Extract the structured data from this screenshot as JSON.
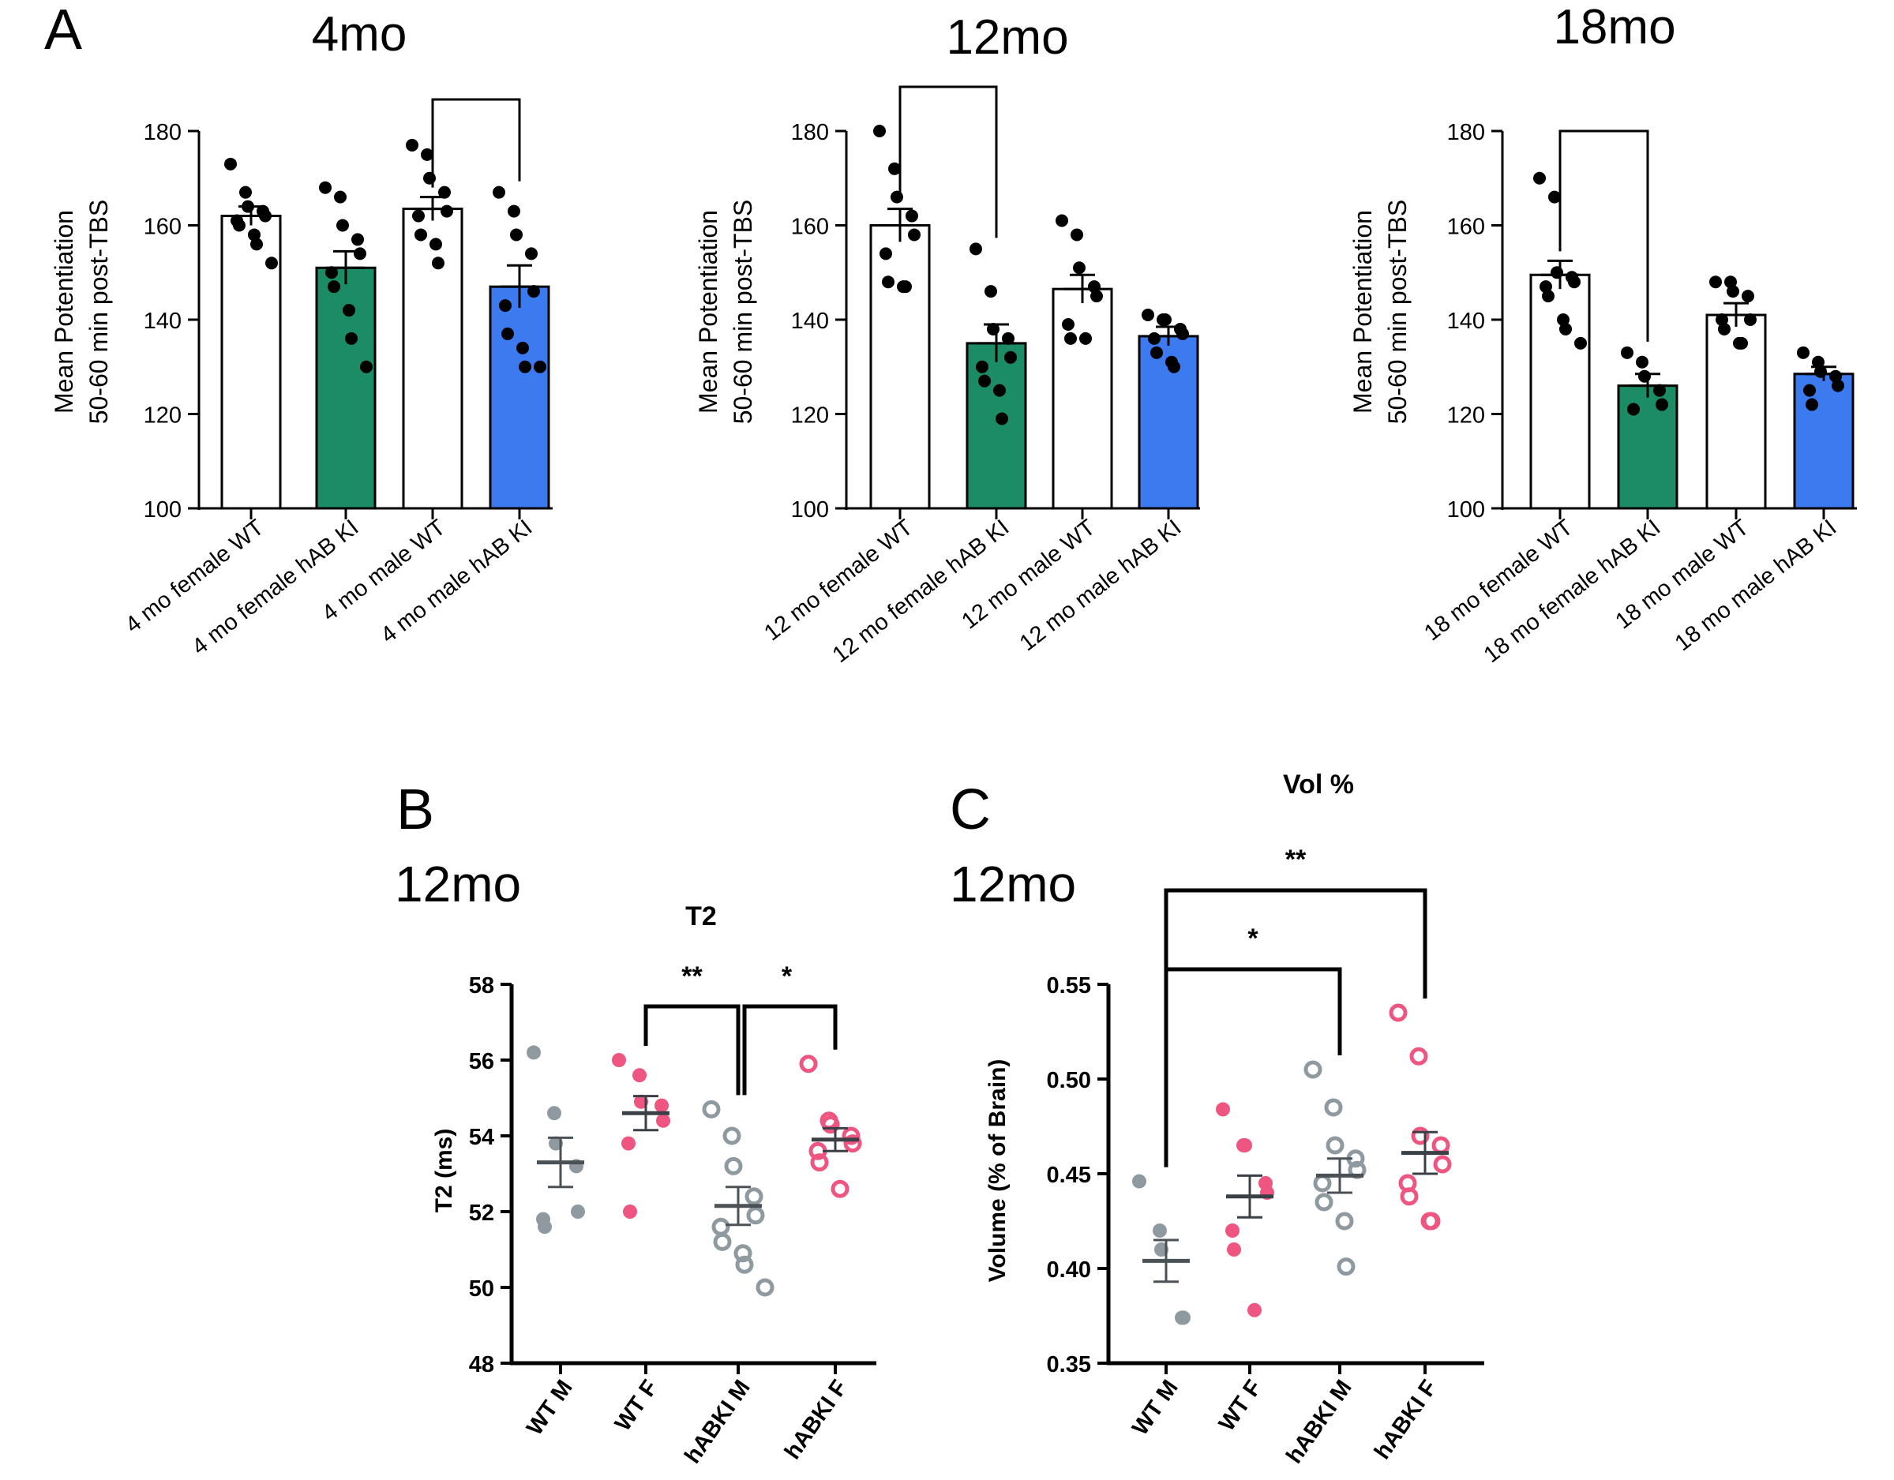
{
  "colors": {
    "axis": "#000000",
    "green": "#1b8c66",
    "blue": "#3b7bef",
    "gray": "#8e9aa0",
    "pink": "#ee5580",
    "bar_white": "#ffffff"
  },
  "panels": {
    "A": {
      "label": "A"
    },
    "B": {
      "label": "B",
      "age": "12mo"
    },
    "C": {
      "label": "C",
      "age": "12mo"
    }
  },
  "chart_data": [
    {
      "id": "A1",
      "type": "bar",
      "title": "4mo",
      "ylabel_line1": "Mean Potentiation",
      "ylabel_line2": "50-60 min post-TBS",
      "ylim": [
        100,
        180
      ],
      "yticks": [
        100,
        120,
        140,
        160,
        180
      ],
      "categories": [
        "4 mo female WT",
        "4 mo female hAB KI",
        "4 mo male WT",
        "4 mo male hAB KI"
      ],
      "bar_colors": [
        "white",
        "green",
        "white",
        "blue"
      ],
      "values": [
        162,
        151,
        163.5,
        147
      ],
      "sem": [
        2,
        3.5,
        2.5,
        4.5
      ],
      "points": [
        [
          173,
          167,
          164,
          163,
          162,
          161,
          160,
          158,
          156,
          152
        ],
        [
          168,
          166,
          160,
          157,
          154,
          150,
          147,
          142,
          136,
          130
        ],
        [
          177,
          175,
          170,
          167,
          163,
          162,
          158,
          156,
          152
        ],
        [
          167,
          163,
          158,
          154,
          146,
          143,
          137,
          134,
          130,
          130
        ]
      ],
      "significance": [
        {
          "from": 2,
          "to": 3,
          "label": ""
        }
      ]
    },
    {
      "id": "A2",
      "type": "bar",
      "title": "12mo",
      "ylabel_line1": "Mean Potentiation",
      "ylabel_line2": "50-60 min post-TBS",
      "ylim": [
        100,
        180
      ],
      "yticks": [
        100,
        120,
        140,
        160,
        180
      ],
      "categories": [
        "12 mo female WT",
        "12 mo female hAB KI",
        "12 mo male WT",
        "12 mo male hAB KI"
      ],
      "bar_colors": [
        "white",
        "green",
        "white",
        "blue"
      ],
      "values": [
        160,
        135,
        146.5,
        136.5
      ],
      "sem": [
        3.5,
        4,
        3,
        2
      ],
      "points": [
        [
          180,
          172,
          166,
          162,
          158,
          154,
          148,
          147,
          147
        ],
        [
          155,
          146,
          138,
          136,
          132,
          130,
          127,
          125,
          119
        ],
        [
          161,
          158,
          151,
          147,
          145,
          139,
          136,
          136
        ],
        [
          141,
          140,
          140,
          138,
          137,
          136,
          133,
          131,
          130
        ]
      ],
      "significance": [
        {
          "from": 0,
          "to": 1,
          "label": ""
        }
      ]
    },
    {
      "id": "A3",
      "type": "bar",
      "title": "18mo",
      "ylabel_line1": "Mean Potentiation",
      "ylabel_line2": "50-60 min post-TBS",
      "ylim": [
        100,
        180
      ],
      "yticks": [
        100,
        120,
        140,
        160,
        180
      ],
      "categories": [
        "18 mo female WT",
        "18 mo female hAB KI",
        "18 mo male WT",
        "18 mo male hAB KI"
      ],
      "bar_colors": [
        "white",
        "green",
        "white",
        "blue"
      ],
      "values": [
        149.5,
        126,
        141,
        128.5
      ],
      "sem": [
        3,
        2.5,
        2.5,
        1.5
      ],
      "points": [
        [
          170,
          166,
          150,
          149,
          148,
          147,
          145,
          140,
          138,
          135
        ],
        [
          133,
          131,
          128,
          125,
          122,
          121
        ],
        [
          148,
          148,
          146,
          145,
          140,
          140,
          138,
          135,
          135
        ],
        [
          133,
          131,
          129,
          128,
          126,
          125,
          122
        ]
      ],
      "significance": [
        {
          "from": 0,
          "to": 1,
          "label": ""
        }
      ]
    },
    {
      "id": "B",
      "type": "scatter",
      "title": "T2",
      "ylabel": "T2 (ms)",
      "ylim": [
        48,
        58
      ],
      "yticks": [
        48,
        50,
        52,
        54,
        56,
        58
      ],
      "categories": [
        "WT M",
        "WT F",
        "hABKI M",
        "hABKI F"
      ],
      "marker": [
        "filled",
        "filled",
        "hollow",
        "hollow"
      ],
      "marker_colors": [
        "gray",
        "pink",
        "gray",
        "pink"
      ],
      "means": [
        53.3,
        54.6,
        52.15,
        53.9
      ],
      "sem": [
        0.65,
        0.45,
        0.5,
        0.3
      ],
      "points": [
        [
          56.2,
          54.6,
          53.8,
          53.2,
          52.0,
          51.8,
          51.6
        ],
        [
          56.0,
          55.6,
          54.9,
          54.8,
          54.4,
          53.8,
          52.0
        ],
        [
          54.7,
          54.0,
          53.2,
          52.4,
          51.9,
          51.6,
          51.2,
          50.9,
          50.6,
          50.0
        ],
        [
          55.9,
          54.4,
          54.3,
          54.0,
          53.8,
          53.6,
          53.3,
          52.6
        ]
      ],
      "significance": [
        {
          "from": 1,
          "to": 2,
          "label": "**"
        },
        {
          "from": 2,
          "to": 3,
          "label": "*"
        }
      ]
    },
    {
      "id": "C",
      "type": "scatter",
      "title": "Vol %",
      "ylabel": "Volume (% of Brain)",
      "ylim": [
        0.35,
        0.55
      ],
      "yticks": [
        "0.35",
        "0.40",
        "0.45",
        "0.50",
        "0.55"
      ],
      "categories": [
        "WT M",
        "WT F",
        "hABKI M",
        "hABKI F"
      ],
      "marker": [
        "filled",
        "filled",
        "hollow",
        "hollow"
      ],
      "marker_colors": [
        "gray",
        "pink",
        "gray",
        "pink"
      ],
      "means": [
        0.404,
        0.438,
        0.449,
        0.461
      ],
      "sem": [
        0.011,
        0.011,
        0.009,
        0.011
      ],
      "points": [
        [
          0.446,
          0.42,
          0.41,
          0.374,
          0.374
        ],
        [
          0.484,
          0.465,
          0.465,
          0.445,
          0.44,
          0.42,
          0.41,
          0.378
        ],
        [
          0.505,
          0.485,
          0.465,
          0.458,
          0.452,
          0.445,
          0.435,
          0.425,
          0.401
        ],
        [
          0.535,
          0.512,
          0.47,
          0.465,
          0.455,
          0.445,
          0.438,
          0.425,
          0.425
        ]
      ],
      "significance": [
        {
          "from": 0,
          "to": 2,
          "label": "*"
        },
        {
          "from": 0,
          "to": 3,
          "label": "**"
        }
      ]
    }
  ]
}
